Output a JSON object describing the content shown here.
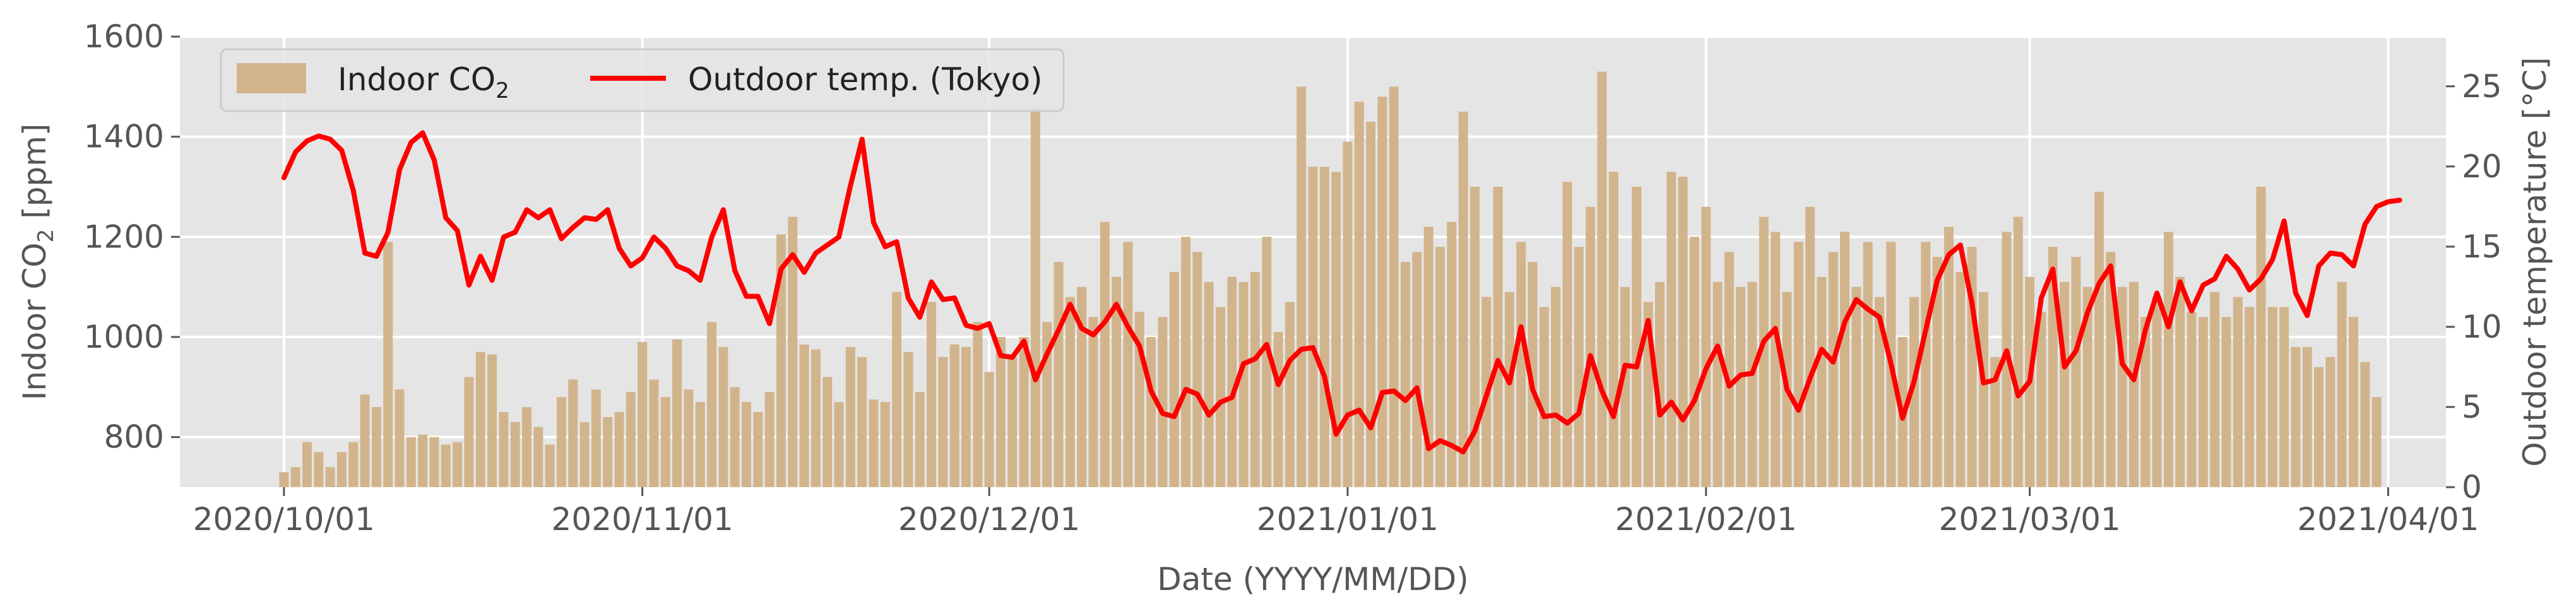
{
  "chart_data": {
    "type": "bar+line",
    "xlabel": "Date (YYYY/MM/DD)",
    "ylabel_left": "Indoor CO",
    "ylabel_left_sub": "2",
    "ylabel_left_unit": " [ppm]",
    "ylabel_right": "Outdoor temperature [°C]",
    "ylim_left": [
      700,
      1600
    ],
    "ylim_right": [
      0,
      28.1
    ],
    "xlim": [
      "2020-09-22",
      "2021-04-06"
    ],
    "left_ticks": [
      800,
      1000,
      1200,
      1400,
      1600
    ],
    "right_ticks": [
      0,
      5,
      10,
      15,
      20,
      25
    ],
    "x_ticks": [
      "2020/10/01",
      "2020/11/01",
      "2020/12/01",
      "2021/01/01",
      "2021/02/01",
      "2021/03/01",
      "2021/04/01"
    ],
    "grid": true,
    "legend_position": "top-left",
    "start_date": "2020-10-01",
    "series": [
      {
        "name": "Indoor CO",
        "name_sub": "2",
        "type": "bar",
        "color": "#d2b48c",
        "values": [
          730,
          740,
          790,
          770,
          740,
          770,
          790,
          885,
          860,
          1190,
          895,
          800,
          805,
          800,
          785,
          790,
          920,
          970,
          965,
          850,
          830,
          860,
          820,
          785,
          880,
          915,
          830,
          895,
          840,
          850,
          890,
          990,
          915,
          880,
          995,
          895,
          870,
          1030,
          980,
          900,
          870,
          850,
          890,
          1205,
          1240,
          985,
          975,
          920,
          870,
          980,
          960,
          875,
          870,
          1090,
          970,
          890,
          1070,
          960,
          985,
          980,
          1030,
          930,
          1000,
          960,
          1000,
          1460,
          1030,
          1150,
          1080,
          1100,
          1040,
          1230,
          1120,
          1190,
          1050,
          1000,
          1040,
          1130,
          1200,
          1170,
          1110,
          1060,
          1120,
          1110,
          1130,
          1200,
          1010,
          1070,
          1500,
          1340,
          1340,
          1330,
          1390,
          1470,
          1430,
          1480,
          1500,
          1150,
          1170,
          1220,
          1180,
          1230,
          1450,
          1300,
          1080,
          1300,
          1090,
          1190,
          1150,
          1060,
          1100,
          1310,
          1180,
          1260,
          1530,
          1330,
          1100,
          1300,
          1070,
          1110,
          1330,
          1320,
          1200,
          1260,
          1110,
          1170,
          1100,
          1110,
          1240,
          1210,
          1090,
          1190,
          1260,
          1120,
          1170,
          1210,
          1100,
          1190,
          1080,
          1190,
          1000,
          1080,
          1190,
          1160,
          1220,
          1130,
          1180,
          1090,
          960,
          1210,
          1240,
          1120,
          1050,
          1180,
          1110,
          1160,
          1100,
          1290,
          1170,
          1100,
          1110,
          1040,
          1080,
          1210,
          1120,
          1050,
          1040,
          1090,
          1040,
          1080,
          1060,
          1300,
          1060,
          1060,
          980,
          980,
          940,
          960,
          1110,
          1040,
          950,
          880
        ]
      },
      {
        "name": "Outdoor temp. (Tokyo)",
        "type": "line",
        "color": "#ff0000",
        "values": [
          19.3,
          20.9,
          21.6,
          21.9,
          21.7,
          21.0,
          18.5,
          14.6,
          14.4,
          15.9,
          19.8,
          21.5,
          22.1,
          20.4,
          16.8,
          16.0,
          12.6,
          14.4,
          12.9,
          15.6,
          15.9,
          17.3,
          16.8,
          17.3,
          15.5,
          16.2,
          16.8,
          16.7,
          17.3,
          14.9,
          13.8,
          14.3,
          15.6,
          14.9,
          13.8,
          13.5,
          12.9,
          15.6,
          17.3,
          13.5,
          11.9,
          11.9,
          10.2,
          13.6,
          14.5,
          13.4,
          14.6,
          15.1,
          15.6,
          18.8,
          21.7,
          16.5,
          15.0,
          15.3,
          11.8,
          10.6,
          12.8,
          11.7,
          11.8,
          10.1,
          9.9,
          10.2,
          8.2,
          8.1,
          9.1,
          6.7,
          8.3,
          9.8,
          11.4,
          9.9,
          9.5,
          10.3,
          11.4,
          10.0,
          8.8,
          6.0,
          4.6,
          4.4,
          6.1,
          5.8,
          4.5,
          5.3,
          5.6,
          7.7,
          8.0,
          8.9,
          6.4,
          7.9,
          8.6,
          8.7,
          6.9,
          3.3,
          4.5,
          4.8,
          3.7,
          5.9,
          6.0,
          5.4,
          6.2,
          2.4,
          2.9,
          2.6,
          2.2,
          3.5,
          5.7,
          7.9,
          6.5,
          10.0,
          6.1,
          4.4,
          4.5,
          4.0,
          4.6,
          8.2,
          6.0,
          4.4,
          7.6,
          7.5,
          10.4,
          4.5,
          5.3,
          4.2,
          5.4,
          7.4,
          8.8,
          6.3,
          7.0,
          7.1,
          9.1,
          9.9,
          6.1,
          4.8,
          6.8,
          8.6,
          7.8,
          10.3,
          11.7,
          11.1,
          10.6,
          7.7,
          4.3,
          6.6,
          9.8,
          12.9,
          14.5,
          15.1,
          11.5,
          6.5,
          6.7,
          8.5,
          5.7,
          6.6,
          11.8,
          13.6,
          7.5,
          8.5,
          10.9,
          12.7,
          13.8,
          7.7,
          6.7,
          9.8,
          12.1,
          10.0,
          12.8,
          11.0,
          12.6,
          13.0,
          14.4,
          13.6,
          12.3,
          13.0,
          14.2,
          16.6,
          12.1,
          10.7,
          13.8,
          14.6,
          14.5,
          13.8,
          16.4,
          17.5,
          17.8,
          17.9
        ]
      }
    ]
  }
}
